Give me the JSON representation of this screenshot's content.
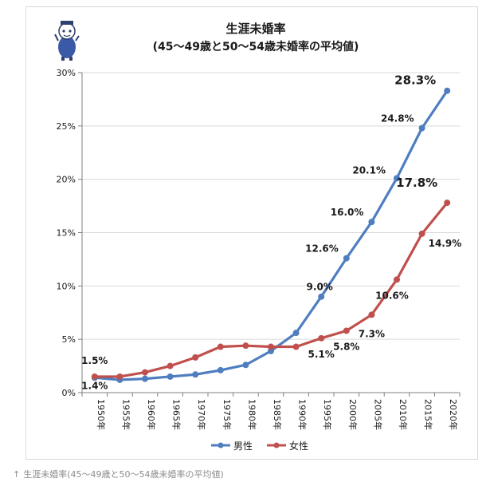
{
  "caption": {
    "arrow": "↑",
    "text": "生涯未婚率(45〜49歳と50〜54歳未婚率の平均値)"
  },
  "colors": {
    "male": "#4f7ec0",
    "female": "#c0504d",
    "grid": "#d9d9d9",
    "axis": "#808080"
  },
  "logo": {
    "icon": "mascot-icon"
  },
  "chart_data": {
    "type": "line",
    "title": "生涯未婚率",
    "subtitle": "(45〜49歳と50〜54歳未婚率の平均値)",
    "xlabel": "",
    "ylabel": "",
    "categories": [
      "1950年",
      "1955年",
      "1960年",
      "1965年",
      "1970年",
      "1975年",
      "1980年",
      "1985年",
      "1990年",
      "1995年",
      "2000年",
      "2005年",
      "2010年",
      "2015年",
      "2020年"
    ],
    "ylim": [
      0,
      30
    ],
    "yticks": [
      "0%",
      "5%",
      "10%",
      "15%",
      "20%",
      "25%",
      "30%"
    ],
    "grid": "horizontal",
    "legend": "bottom",
    "series": [
      {
        "name": "男性",
        "values": [
          1.4,
          1.2,
          1.3,
          1.5,
          1.7,
          2.1,
          2.6,
          3.9,
          5.6,
          9.0,
          12.6,
          16.0,
          20.1,
          24.8,
          28.3
        ]
      },
      {
        "name": "女性",
        "values": [
          1.5,
          1.5,
          1.9,
          2.5,
          3.3,
          4.3,
          4.4,
          4.3,
          4.3,
          5.1,
          5.8,
          7.3,
          10.6,
          14.9,
          17.8
        ]
      }
    ],
    "annotations": {
      "male": [
        {
          "i": 0,
          "text": "1.4%"
        },
        {
          "i": 9,
          "text": "9.0%"
        },
        {
          "i": 10,
          "text": "12.6%"
        },
        {
          "i": 11,
          "text": "16.0%"
        },
        {
          "i": 12,
          "text": "20.1%"
        },
        {
          "i": 13,
          "text": "24.8%"
        },
        {
          "i": 14,
          "text": "28.3%",
          "emph": true
        }
      ],
      "female": [
        {
          "i": 0,
          "text": "1.5%"
        },
        {
          "i": 9,
          "text": "5.1%"
        },
        {
          "i": 10,
          "text": "5.8%"
        },
        {
          "i": 11,
          "text": "7.3%"
        },
        {
          "i": 12,
          "text": "10.6%"
        },
        {
          "i": 13,
          "text": "14.9%"
        },
        {
          "i": 14,
          "text": "17.8%",
          "emph": true
        }
      ]
    }
  }
}
